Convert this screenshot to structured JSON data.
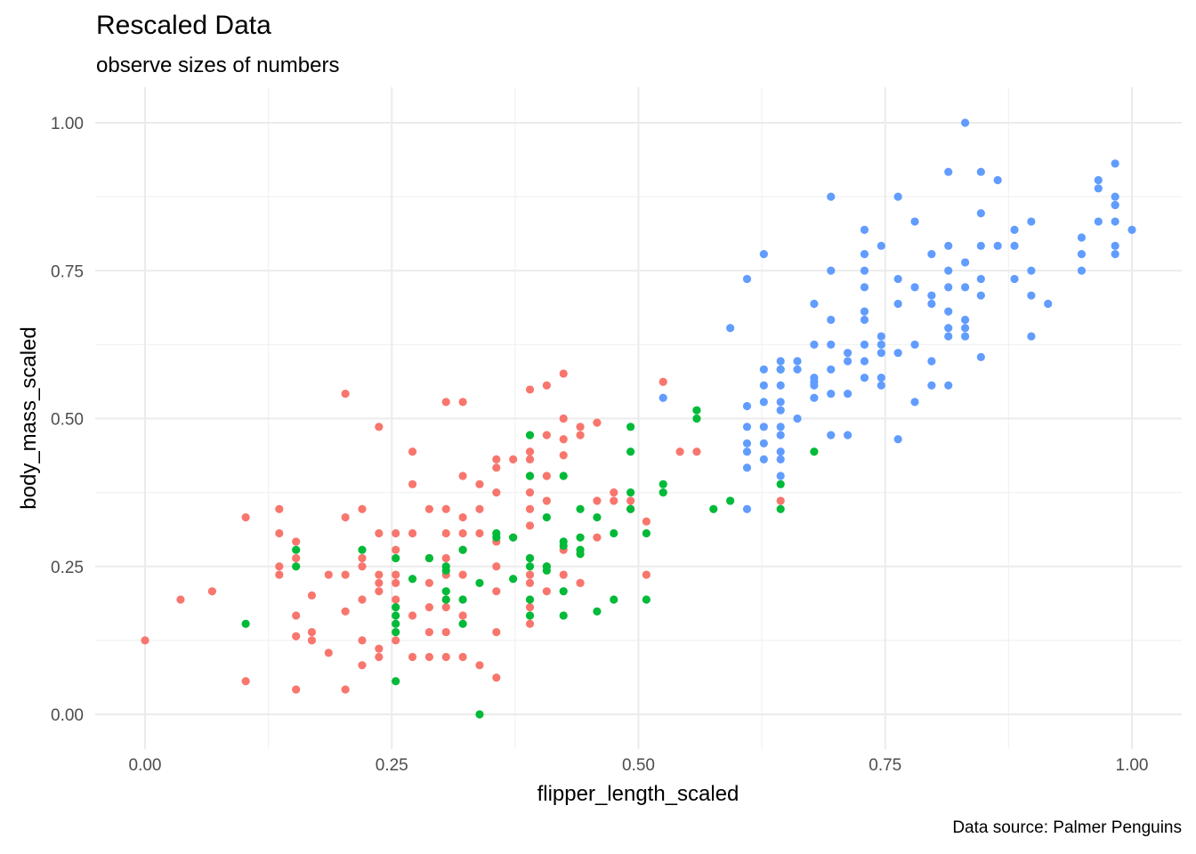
{
  "chart_data": {
    "type": "scatter",
    "title": "Rescaled Data",
    "subtitle": "observe sizes of numbers",
    "caption": "Data source: Palmer Penguins",
    "xlabel": "flipper_length_scaled",
    "ylabel": "body_mass_scaled",
    "xlim": [
      0,
      1
    ],
    "ylim": [
      0,
      1
    ],
    "x_ticks": [
      0,
      0.25,
      0.5,
      0.75,
      1
    ],
    "y_ticks": [
      0,
      0.25,
      0.5,
      0.75,
      1
    ],
    "x_tick_labels": [
      "0.00",
      "0.25",
      "0.50",
      "0.75",
      "1.00"
    ],
    "y_tick_labels": [
      "0.00",
      "0.25",
      "0.50",
      "0.75",
      "1.00"
    ],
    "grid": true,
    "legend": "none",
    "series": [
      {
        "color": "#F8766D",
        "points": [
          [
            0.0,
            0.125
          ],
          [
            0.036,
            0.194
          ],
          [
            0.068,
            0.208
          ],
          [
            0.102,
            0.333
          ],
          [
            0.102,
            0.056
          ],
          [
            0.136,
            0.347
          ],
          [
            0.136,
            0.306
          ],
          [
            0.136,
            0.25
          ],
          [
            0.136,
            0.236
          ],
          [
            0.153,
            0.292
          ],
          [
            0.153,
            0.264
          ],
          [
            0.153,
            0.167
          ],
          [
            0.153,
            0.132
          ],
          [
            0.153,
            0.042
          ],
          [
            0.169,
            0.139
          ],
          [
            0.169,
            0.125
          ],
          [
            0.169,
            0.201
          ],
          [
            0.186,
            0.236
          ],
          [
            0.186,
            0.104
          ],
          [
            0.203,
            0.542
          ],
          [
            0.203,
            0.333
          ],
          [
            0.203,
            0.236
          ],
          [
            0.203,
            0.174
          ],
          [
            0.203,
            0.042
          ],
          [
            0.22,
            0.347
          ],
          [
            0.22,
            0.264
          ],
          [
            0.22,
            0.25
          ],
          [
            0.22,
            0.194
          ],
          [
            0.22,
            0.125
          ],
          [
            0.22,
            0.083
          ],
          [
            0.237,
            0.486
          ],
          [
            0.237,
            0.306
          ],
          [
            0.237,
            0.236
          ],
          [
            0.237,
            0.222
          ],
          [
            0.237,
            0.208
          ],
          [
            0.237,
            0.111
          ],
          [
            0.237,
            0.097
          ],
          [
            0.254,
            0.306
          ],
          [
            0.254,
            0.278
          ],
          [
            0.254,
            0.236
          ],
          [
            0.254,
            0.222
          ],
          [
            0.254,
            0.194
          ],
          [
            0.254,
            0.125
          ],
          [
            0.271,
            0.444
          ],
          [
            0.271,
            0.389
          ],
          [
            0.271,
            0.306
          ],
          [
            0.271,
            0.167
          ],
          [
            0.271,
            0.097
          ],
          [
            0.288,
            0.347
          ],
          [
            0.288,
            0.264
          ],
          [
            0.288,
            0.222
          ],
          [
            0.288,
            0.181
          ],
          [
            0.288,
            0.139
          ],
          [
            0.288,
            0.097
          ],
          [
            0.305,
            0.528
          ],
          [
            0.305,
            0.347
          ],
          [
            0.305,
            0.306
          ],
          [
            0.305,
            0.264
          ],
          [
            0.305,
            0.236
          ],
          [
            0.305,
            0.194
          ],
          [
            0.305,
            0.181
          ],
          [
            0.305,
            0.139
          ],
          [
            0.305,
            0.097
          ],
          [
            0.322,
            0.528
          ],
          [
            0.322,
            0.403
          ],
          [
            0.322,
            0.333
          ],
          [
            0.322,
            0.306
          ],
          [
            0.322,
            0.278
          ],
          [
            0.322,
            0.236
          ],
          [
            0.322,
            0.167
          ],
          [
            0.322,
            0.097
          ],
          [
            0.339,
            0.389
          ],
          [
            0.339,
            0.347
          ],
          [
            0.339,
            0.306
          ],
          [
            0.339,
            0.083
          ],
          [
            0.356,
            0.431
          ],
          [
            0.356,
            0.417
          ],
          [
            0.356,
            0.375
          ],
          [
            0.356,
            0.292
          ],
          [
            0.356,
            0.25
          ],
          [
            0.356,
            0.208
          ],
          [
            0.356,
            0.139
          ],
          [
            0.356,
            0.062
          ],
          [
            0.373,
            0.431
          ],
          [
            0.373,
            0.299
          ],
          [
            0.39,
            0.549
          ],
          [
            0.39,
            0.444
          ],
          [
            0.39,
            0.431
          ],
          [
            0.39,
            0.403
          ],
          [
            0.39,
            0.375
          ],
          [
            0.39,
            0.347
          ],
          [
            0.39,
            0.319
          ],
          [
            0.39,
            0.264
          ],
          [
            0.39,
            0.236
          ],
          [
            0.39,
            0.222
          ],
          [
            0.39,
            0.181
          ],
          [
            0.39,
            0.153
          ],
          [
            0.407,
            0.556
          ],
          [
            0.407,
            0.472
          ],
          [
            0.407,
            0.403
          ],
          [
            0.407,
            0.361
          ],
          [
            0.407,
            0.25
          ],
          [
            0.407,
            0.208
          ],
          [
            0.424,
            0.576
          ],
          [
            0.424,
            0.5
          ],
          [
            0.424,
            0.465
          ],
          [
            0.424,
            0.438
          ],
          [
            0.424,
            0.278
          ],
          [
            0.424,
            0.236
          ],
          [
            0.441,
            0.486
          ],
          [
            0.441,
            0.472
          ],
          [
            0.441,
            0.222
          ],
          [
            0.441,
            0.222
          ],
          [
            0.458,
            0.493
          ],
          [
            0.458,
            0.361
          ],
          [
            0.458,
            0.299
          ],
          [
            0.475,
            0.375
          ],
          [
            0.475,
            0.361
          ],
          [
            0.492,
            0.361
          ],
          [
            0.492,
            0.347
          ],
          [
            0.508,
            0.326
          ],
          [
            0.508,
            0.236
          ],
          [
            0.525,
            0.562
          ],
          [
            0.542,
            0.444
          ],
          [
            0.559,
            0.444
          ],
          [
            0.644,
            0.361
          ]
        ]
      },
      {
        "color": "#00BA38",
        "points": [
          [
            0.102,
            0.153
          ],
          [
            0.153,
            0.278
          ],
          [
            0.153,
            0.25
          ],
          [
            0.22,
            0.278
          ],
          [
            0.254,
            0.264
          ],
          [
            0.254,
            0.181
          ],
          [
            0.254,
            0.167
          ],
          [
            0.254,
            0.153
          ],
          [
            0.254,
            0.139
          ],
          [
            0.254,
            0.056
          ],
          [
            0.271,
            0.229
          ],
          [
            0.288,
            0.264
          ],
          [
            0.305,
            0.25
          ],
          [
            0.305,
            0.243
          ],
          [
            0.305,
            0.208
          ],
          [
            0.305,
            0.194
          ],
          [
            0.322,
            0.278
          ],
          [
            0.322,
            0.194
          ],
          [
            0.322,
            0.153
          ],
          [
            0.339,
            0.222
          ],
          [
            0.339,
            0.0
          ],
          [
            0.356,
            0.306
          ],
          [
            0.356,
            0.299
          ],
          [
            0.373,
            0.299
          ],
          [
            0.373,
            0.229
          ],
          [
            0.39,
            0.472
          ],
          [
            0.39,
            0.403
          ],
          [
            0.39,
            0.264
          ],
          [
            0.39,
            0.25
          ],
          [
            0.39,
            0.194
          ],
          [
            0.39,
            0.167
          ],
          [
            0.407,
            0.333
          ],
          [
            0.407,
            0.25
          ],
          [
            0.407,
            0.243
          ],
          [
            0.424,
            0.403
          ],
          [
            0.424,
            0.292
          ],
          [
            0.424,
            0.285
          ],
          [
            0.424,
            0.208
          ],
          [
            0.424,
            0.167
          ],
          [
            0.441,
            0.347
          ],
          [
            0.441,
            0.299
          ],
          [
            0.441,
            0.278
          ],
          [
            0.441,
            0.271
          ],
          [
            0.458,
            0.333
          ],
          [
            0.458,
            0.174
          ],
          [
            0.475,
            0.306
          ],
          [
            0.475,
            0.194
          ],
          [
            0.492,
            0.486
          ],
          [
            0.492,
            0.444
          ],
          [
            0.492,
            0.375
          ],
          [
            0.492,
            0.347
          ],
          [
            0.508,
            0.306
          ],
          [
            0.508,
            0.194
          ],
          [
            0.525,
            0.389
          ],
          [
            0.525,
            0.375
          ],
          [
            0.559,
            0.514
          ],
          [
            0.559,
            0.5
          ],
          [
            0.576,
            0.347
          ],
          [
            0.593,
            0.361
          ],
          [
            0.644,
            0.583
          ],
          [
            0.644,
            0.389
          ],
          [
            0.644,
            0.347
          ],
          [
            0.678,
            0.444
          ]
        ]
      },
      {
        "color": "#619CFF",
        "points": [
          [
            0.525,
            0.535
          ],
          [
            0.593,
            0.653
          ],
          [
            0.61,
            0.736
          ],
          [
            0.61,
            0.521
          ],
          [
            0.61,
            0.486
          ],
          [
            0.61,
            0.458
          ],
          [
            0.61,
            0.444
          ],
          [
            0.61,
            0.417
          ],
          [
            0.61,
            0.347
          ],
          [
            0.627,
            0.778
          ],
          [
            0.627,
            0.583
          ],
          [
            0.627,
            0.556
          ],
          [
            0.627,
            0.528
          ],
          [
            0.627,
            0.486
          ],
          [
            0.627,
            0.458
          ],
          [
            0.627,
            0.431
          ],
          [
            0.644,
            0.597
          ],
          [
            0.644,
            0.583
          ],
          [
            0.644,
            0.556
          ],
          [
            0.644,
            0.528
          ],
          [
            0.644,
            0.514
          ],
          [
            0.644,
            0.486
          ],
          [
            0.644,
            0.472
          ],
          [
            0.644,
            0.444
          ],
          [
            0.644,
            0.431
          ],
          [
            0.644,
            0.403
          ],
          [
            0.661,
            0.597
          ],
          [
            0.661,
            0.5
          ],
          [
            0.661,
            0.583
          ],
          [
            0.678,
            0.694
          ],
          [
            0.678,
            0.625
          ],
          [
            0.678,
            0.569
          ],
          [
            0.678,
            0.562
          ],
          [
            0.678,
            0.556
          ],
          [
            0.678,
            0.535
          ],
          [
            0.695,
            0.875
          ],
          [
            0.695,
            0.75
          ],
          [
            0.695,
            0.667
          ],
          [
            0.695,
            0.625
          ],
          [
            0.695,
            0.583
          ],
          [
            0.695,
            0.542
          ],
          [
            0.695,
            0.472
          ],
          [
            0.712,
            0.611
          ],
          [
            0.712,
            0.597
          ],
          [
            0.712,
            0.542
          ],
          [
            0.712,
            0.472
          ],
          [
            0.729,
            0.819
          ],
          [
            0.729,
            0.778
          ],
          [
            0.729,
            0.75
          ],
          [
            0.729,
            0.722
          ],
          [
            0.729,
            0.681
          ],
          [
            0.729,
            0.667
          ],
          [
            0.729,
            0.625
          ],
          [
            0.729,
            0.597
          ],
          [
            0.729,
            0.569
          ],
          [
            0.746,
            0.792
          ],
          [
            0.746,
            0.639
          ],
          [
            0.746,
            0.625
          ],
          [
            0.746,
            0.569
          ],
          [
            0.746,
            0.556
          ],
          [
            0.746,
            0.611
          ],
          [
            0.763,
            0.875
          ],
          [
            0.763,
            0.736
          ],
          [
            0.763,
            0.694
          ],
          [
            0.763,
            0.611
          ],
          [
            0.763,
            0.465
          ],
          [
            0.78,
            0.833
          ],
          [
            0.78,
            0.722
          ],
          [
            0.78,
            0.625
          ],
          [
            0.78,
            0.528
          ],
          [
            0.797,
            0.778
          ],
          [
            0.797,
            0.708
          ],
          [
            0.797,
            0.694
          ],
          [
            0.797,
            0.597
          ],
          [
            0.797,
            0.556
          ],
          [
            0.814,
            0.917
          ],
          [
            0.814,
            0.792
          ],
          [
            0.814,
            0.75
          ],
          [
            0.814,
            0.722
          ],
          [
            0.814,
            0.681
          ],
          [
            0.814,
            0.653
          ],
          [
            0.814,
            0.639
          ],
          [
            0.814,
            0.556
          ],
          [
            0.831,
            1.0
          ],
          [
            0.831,
            0.764
          ],
          [
            0.831,
            0.722
          ],
          [
            0.831,
            0.667
          ],
          [
            0.831,
            0.653
          ],
          [
            0.831,
            0.639
          ],
          [
            0.847,
            0.917
          ],
          [
            0.847,
            0.847
          ],
          [
            0.847,
            0.792
          ],
          [
            0.847,
            0.736
          ],
          [
            0.847,
            0.708
          ],
          [
            0.847,
            0.604
          ],
          [
            0.864,
            0.903
          ],
          [
            0.864,
            0.792
          ],
          [
            0.881,
            0.819
          ],
          [
            0.881,
            0.792
          ],
          [
            0.881,
            0.736
          ],
          [
            0.898,
            0.833
          ],
          [
            0.898,
            0.75
          ],
          [
            0.898,
            0.708
          ],
          [
            0.898,
            0.639
          ],
          [
            0.915,
            0.694
          ],
          [
            0.949,
            0.806
          ],
          [
            0.949,
            0.778
          ],
          [
            0.949,
            0.75
          ],
          [
            0.966,
            0.903
          ],
          [
            0.966,
            0.833
          ],
          [
            0.983,
            0.931
          ],
          [
            0.983,
            0.875
          ],
          [
            0.983,
            0.861
          ],
          [
            0.983,
            0.833
          ],
          [
            0.983,
            0.792
          ],
          [
            0.983,
            0.778
          ],
          [
            1.0,
            0.819
          ],
          [
            0.966,
            0.889
          ],
          [
            0.983,
            0.861
          ]
        ]
      }
    ]
  }
}
